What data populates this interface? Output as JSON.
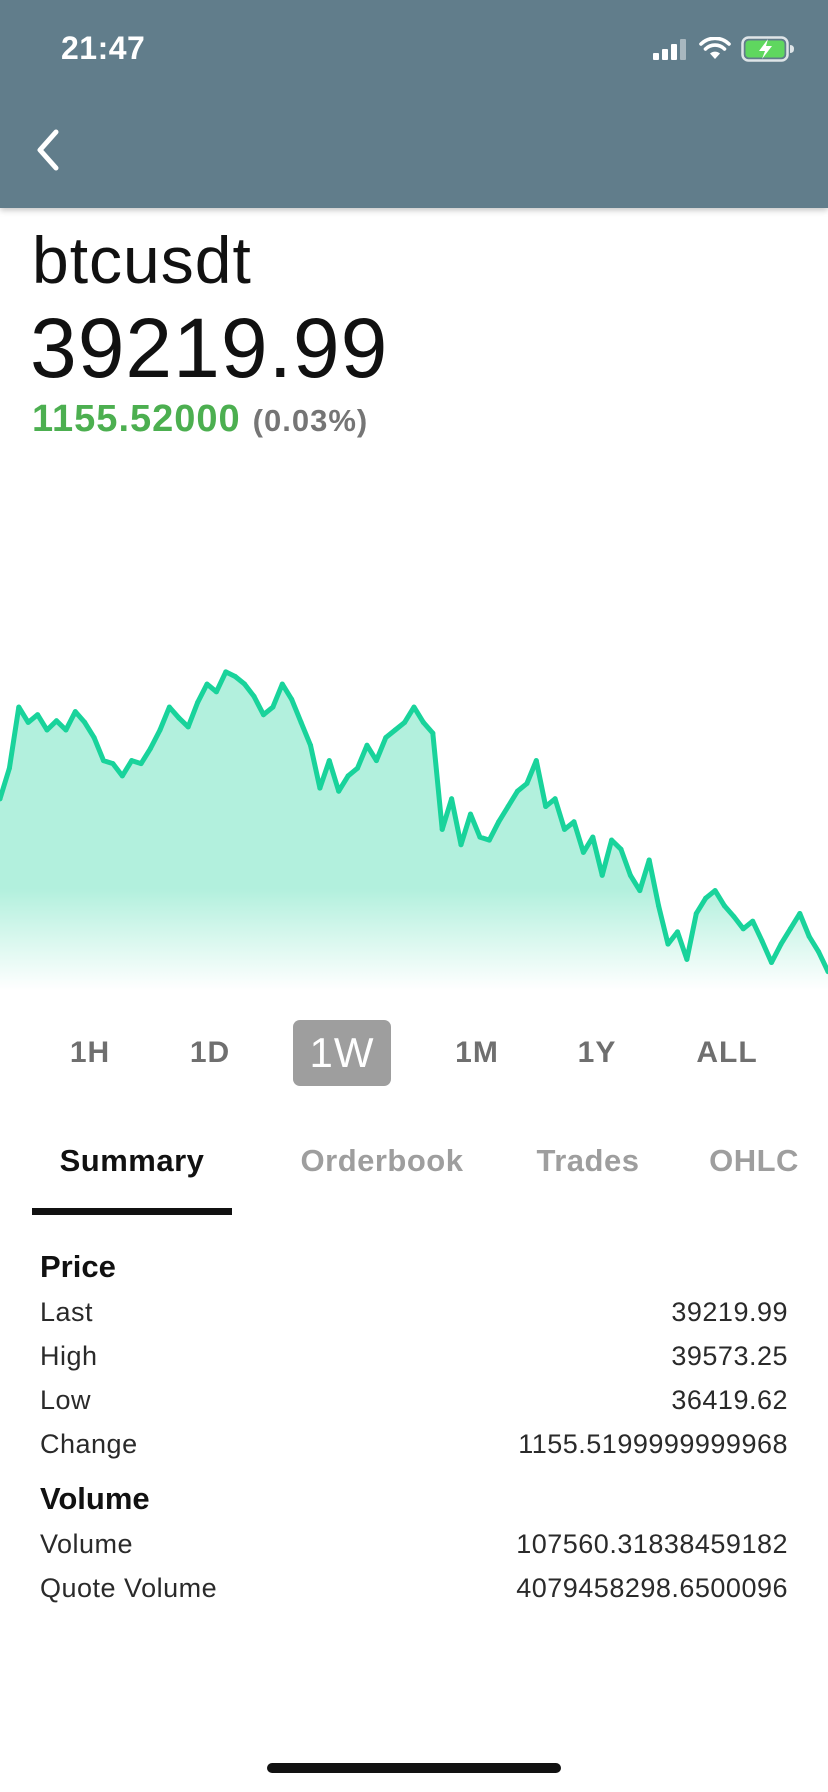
{
  "status_bar": {
    "time": "21:47",
    "icons": [
      "signal-icon",
      "wifi-icon",
      "battery-charging-icon"
    ]
  },
  "header": {
    "background_color": "#617d8b",
    "back_icon": "chevron-left-icon"
  },
  "ticker": {
    "symbol": "btcusdt",
    "price": "39219.99",
    "change_value": "1155.52000",
    "change_percent": "(0.03%)",
    "change_color": "#4caf50"
  },
  "chart_data": {
    "type": "area",
    "title": "",
    "xlabel": "",
    "ylabel": "",
    "line_color": "#19d39b",
    "fill_color": "#b2f0dd",
    "ylim": [
      36300,
      39700
    ],
    "series": [
      {
        "values": [
          37550,
          37750,
          38150,
          38050,
          38100,
          38000,
          38060,
          38000,
          38120,
          38050,
          37950,
          37800,
          37780,
          37700,
          37800,
          37780,
          37880,
          38000,
          38150,
          38080,
          38020,
          38180,
          38300,
          38250,
          38380,
          38350,
          38300,
          38220,
          38100,
          38150,
          38300,
          38200,
          38050,
          37900,
          37620,
          37800,
          37600,
          37700,
          37750,
          37900,
          37800,
          37950,
          38000,
          38050,
          38150,
          38050,
          37980,
          37350,
          37550,
          37250,
          37450,
          37300,
          37280,
          37400,
          37500,
          37600,
          37650,
          37800,
          37500,
          37550,
          37350,
          37400,
          37200,
          37300,
          37050,
          37280,
          37220,
          37050,
          36950,
          37150,
          36850,
          36600,
          36680,
          36500,
          36800,
          36900,
          36950,
          36850,
          36780,
          36700,
          36750,
          36620,
          36480,
          36600,
          36700,
          36800,
          36650,
          36550,
          36420
        ]
      }
    ]
  },
  "ranges": [
    {
      "label": "1H",
      "active": false
    },
    {
      "label": "1D",
      "active": false
    },
    {
      "label": "1W",
      "active": true
    },
    {
      "label": "1M",
      "active": false
    },
    {
      "label": "1Y",
      "active": false
    },
    {
      "label": "ALL",
      "active": false
    }
  ],
  "tabs": [
    {
      "label": "Summary",
      "active": true
    },
    {
      "label": "Orderbook",
      "active": false
    },
    {
      "label": "Trades",
      "active": false
    },
    {
      "label": "OHLC",
      "active": false
    }
  ],
  "summary": {
    "price_title": "Price",
    "price_rows": [
      {
        "label": "Last",
        "value": "39219.99"
      },
      {
        "label": "High",
        "value": "39573.25"
      },
      {
        "label": "Low",
        "value": "36419.62"
      },
      {
        "label": "Change",
        "value": "1155.5199999999968"
      }
    ],
    "volume_title": "Volume",
    "volume_rows": [
      {
        "label": "Volume",
        "value": "107560.31838459182"
      },
      {
        "label": "Quote Volume",
        "value": "4079458298.6500096"
      }
    ]
  }
}
